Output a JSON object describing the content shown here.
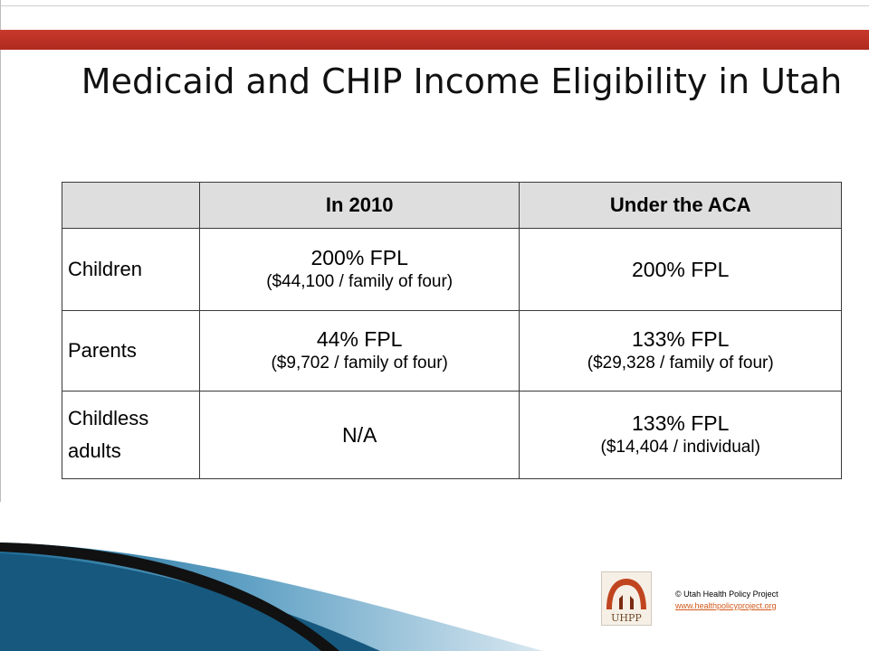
{
  "slide": {
    "title": "Medicaid and CHIP Income Eligibility in Utah"
  },
  "table": {
    "headers": [
      "",
      "In 2010",
      "Under the ACA"
    ],
    "rows": [
      {
        "label": "Children",
        "in2010": {
          "main": "200% FPL",
          "sub": "($44,100 / family of four)"
        },
        "aca": {
          "main": "200% FPL",
          "sub": ""
        }
      },
      {
        "label": "Parents",
        "in2010": {
          "main": "44% FPL",
          "sub": "($9,702 / family of four)"
        },
        "aca": {
          "main": "133% FPL",
          "sub": "($29,328 / family of four)"
        }
      },
      {
        "label": "Childless adults",
        "in2010": {
          "main": "N/A",
          "sub": ""
        },
        "aca": {
          "main": "133% FPL",
          "sub": "($14,404 / individual)"
        }
      }
    ]
  },
  "footer": {
    "logo_text": "UHPP",
    "copyright": "© Utah Health Policy Project",
    "url": "www.healthpolicyproject.org"
  },
  "colors": {
    "band": "#c8392b",
    "header_fill": "#dedede",
    "swoosh_blue": "#1f6d97",
    "swoosh_dark": "#111111"
  }
}
